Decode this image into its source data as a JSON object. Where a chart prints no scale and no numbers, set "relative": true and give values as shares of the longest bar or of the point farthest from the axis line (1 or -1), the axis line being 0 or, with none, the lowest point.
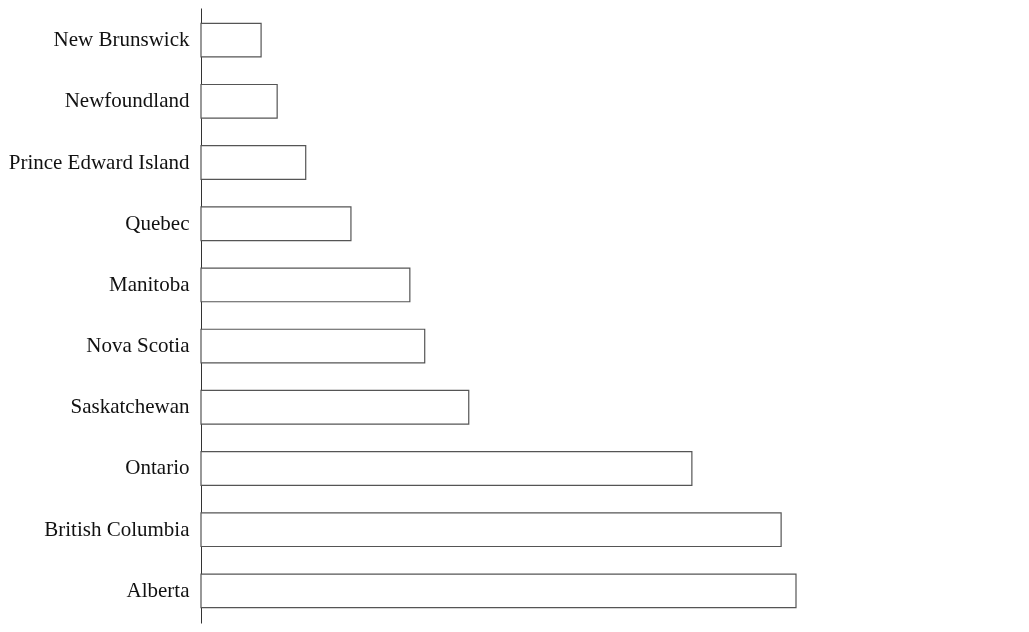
{
  "chart_data": {
    "type": "bar",
    "orientation": "horizontal",
    "relative": true,
    "color": "#ffffff",
    "categories": [
      "New Brunswick",
      "Newfoundland",
      "Prince Edward Island",
      "Quebec",
      "Manitoba",
      "Nova Scotia",
      "Saskatchewan",
      "Ontario",
      "British Columbia",
      "Alberta"
    ],
    "values": [
      0.101,
      0.128,
      0.176,
      0.252,
      0.351,
      0.376,
      0.45,
      0.825,
      0.975,
      1
    ]
  }
}
